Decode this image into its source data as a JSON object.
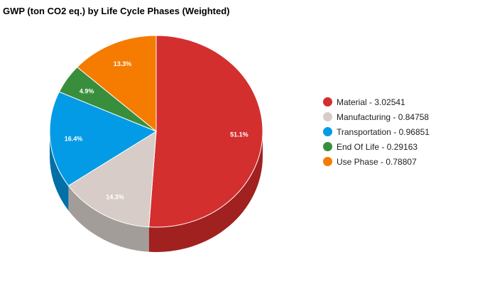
{
  "chart_data": {
    "type": "pie",
    "title": "GWP (ton CO2 eq.) by Life Cycle Phases (Weighted)",
    "slices": [
      {
        "label": "Material",
        "value": 3.02541,
        "legend": "Material - 3.02541",
        "percent_label": "51.1%",
        "color": "#d32f2f",
        "side_color": "#a12020"
      },
      {
        "label": "Manufacturing",
        "value": 0.84758,
        "legend": "Manufacturing - 0.84758",
        "percent_label": "14.3%",
        "color": "#d7ccc8",
        "side_color": "#a39d9a"
      },
      {
        "label": "Transportation",
        "value": 0.96851,
        "legend": "Transportation - 0.96851",
        "percent_label": "16.4%",
        "color": "#039be5",
        "side_color": "#0270a6"
      },
      {
        "label": "End Of Life",
        "value": 0.29163,
        "legend": "End Of Life - 0.29163",
        "percent_label": "4.9%",
        "color": "#388e3c",
        "side_color": "#276329"
      },
      {
        "label": "Use Phase",
        "value": 0.78807,
        "legend": "Use Phase - 0.78807",
        "percent_label": "13.3%",
        "color": "#f57c00",
        "side_color": "#b35900"
      }
    ],
    "legend_position": "right",
    "style": "3d"
  }
}
